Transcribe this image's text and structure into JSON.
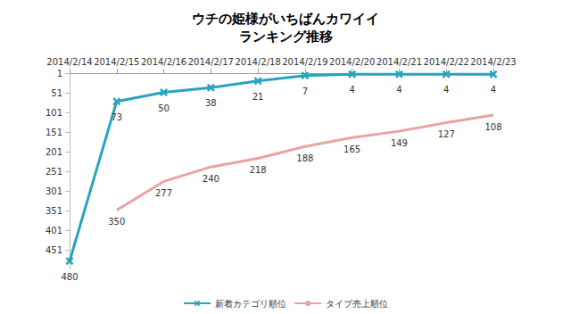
{
  "chart_data": {
    "type": "line",
    "title": "ウチの姫様がいちばんカワイイ\nランキング推移",
    "categories": [
      "2014/2/14",
      "2014/2/15",
      "2014/2/16",
      "2014/2/17",
      "2014/2/18",
      "2014/2/19",
      "2014/2/20",
      "2014/2/21",
      "2014/2/22",
      "2014/2/23"
    ],
    "series": [
      {
        "name": "新着カテゴリ順位",
        "color": "#2aa3bd",
        "marker": "x",
        "values": [
          480,
          73,
          50,
          38,
          21,
          7,
          4,
          4,
          4,
          4
        ]
      },
      {
        "name": "タイプ売上順位",
        "color": "#e8a3a3",
        "marker": "none",
        "values": [
          null,
          350,
          277,
          240,
          218,
          188,
          165,
          149,
          127,
          108
        ]
      }
    ],
    "ylim": [
      1,
      501
    ],
    "yticks": [
      1,
      51,
      101,
      151,
      201,
      251,
      301,
      351,
      401,
      451
    ],
    "inverted_y": true,
    "grid": false,
    "legend": "bottom",
    "data_labels": true
  }
}
